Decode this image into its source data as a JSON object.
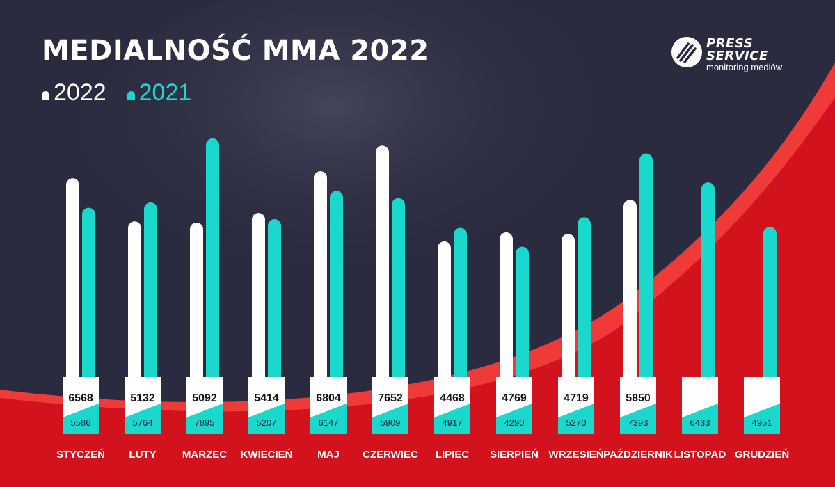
{
  "title": "MEDIALNOŚĆ MMA 2022",
  "logo": {
    "line1": "PRESS",
    "line2": "SERVICE",
    "line3": "monitoring mediów"
  },
  "colors": {
    "background": "#2b2b40",
    "accent_red": "#d2121d",
    "series_2022": "#ffffff",
    "series_2021": "#1ad8cb",
    "month_label": "#ffffff"
  },
  "chart_data": {
    "type": "bar",
    "title": "MEDIALNOŚĆ MMA 2022",
    "xlabel": "",
    "ylabel": "",
    "ylim": [
      0,
      8000
    ],
    "grid": false,
    "legend_placement": "top-left",
    "categories": [
      "STYCZEŃ",
      "LUTY",
      "MARZEC",
      "KWIECIEŃ",
      "MAJ",
      "CZERWIEC",
      "LIPIEC",
      "SIERPIEŃ",
      "WRZESIEŃ",
      "PAŹDZIERNIK",
      "LISTOPAD",
      "GRUDZIEŃ"
    ],
    "series": [
      {
        "name": "2022",
        "color": "#ffffff",
        "values": [
          6568,
          5132,
          5092,
          5414,
          6804,
          7652,
          4468,
          4769,
          4719,
          5850,
          null,
          null
        ]
      },
      {
        "name": "2021",
        "color": "#1ad8cb",
        "values": [
          5586,
          5764,
          7895,
          5207,
          6147,
          5909,
          4917,
          4290,
          5270,
          7393,
          6433,
          4951
        ]
      }
    ]
  }
}
